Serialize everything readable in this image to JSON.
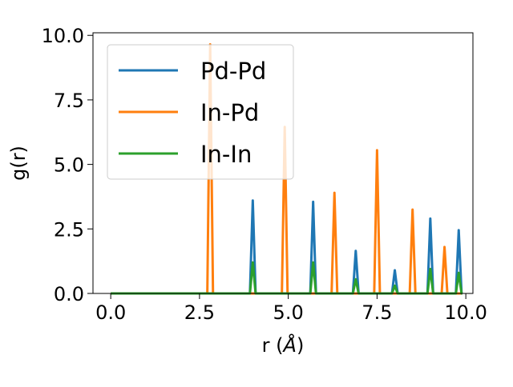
{
  "chart_data": {
    "type": "line",
    "xlabel_prefix": "r (",
    "xlabel_unit": "Å",
    "xlabel_suffix": ")",
    "ylabel": "g(r)",
    "xlim": [
      -0.5,
      10.2
    ],
    "ylim": [
      0,
      10.1
    ],
    "xticks": [
      {
        "value": 0,
        "label": "0.0"
      },
      {
        "value": 2.5,
        "label": "2.5"
      },
      {
        "value": 5,
        "label": "5.0"
      },
      {
        "value": 7.5,
        "label": "7.5"
      },
      {
        "value": 10,
        "label": "10.0"
      }
    ],
    "yticks": [
      {
        "value": 0,
        "label": "0.0"
      },
      {
        "value": 2.5,
        "label": "2.5"
      },
      {
        "value": 5,
        "label": "5.0"
      },
      {
        "value": 7.5,
        "label": "7.5"
      },
      {
        "value": 10,
        "label": "10.0"
      }
    ],
    "grid": false,
    "legend_position": "top-left",
    "x_range": [
      0,
      9.9
    ],
    "peak_halfwidth": 0.08,
    "series": [
      {
        "name": "Pd-Pd",
        "color": "#1f77b4",
        "peaks": [
          {
            "x": 4.0,
            "y": 3.6
          },
          {
            "x": 5.7,
            "y": 3.55
          },
          {
            "x": 6.9,
            "y": 1.65
          },
          {
            "x": 8.0,
            "y": 0.9
          },
          {
            "x": 9.0,
            "y": 2.9
          },
          {
            "x": 9.8,
            "y": 2.45
          }
        ]
      },
      {
        "name": "In-Pd",
        "color": "#ff7f0e",
        "peaks": [
          {
            "x": 2.8,
            "y": 9.65
          },
          {
            "x": 4.9,
            "y": 6.45
          },
          {
            "x": 6.3,
            "y": 3.9
          },
          {
            "x": 7.5,
            "y": 5.55
          },
          {
            "x": 8.5,
            "y": 3.25
          },
          {
            "x": 9.4,
            "y": 1.8
          }
        ]
      },
      {
        "name": "In-In",
        "color": "#2ca02c",
        "peaks": [
          {
            "x": 4.0,
            "y": 1.2
          },
          {
            "x": 5.7,
            "y": 1.2
          },
          {
            "x": 6.9,
            "y": 0.55
          },
          {
            "x": 8.0,
            "y": 0.3
          },
          {
            "x": 9.0,
            "y": 0.95
          },
          {
            "x": 9.8,
            "y": 0.8
          }
        ]
      }
    ]
  }
}
